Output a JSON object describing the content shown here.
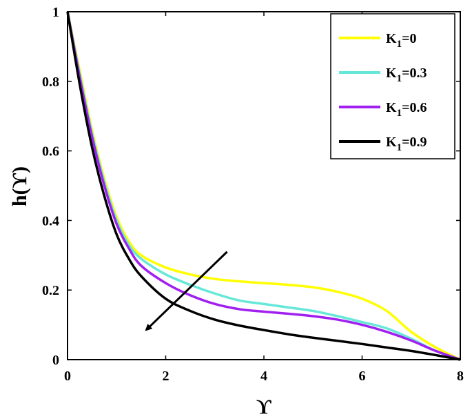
{
  "chart_data": {
    "type": "line",
    "xlabel": "ϒ",
    "ylabel": "h(ϒ)",
    "xlim": [
      0,
      8
    ],
    "ylim": [
      0,
      1
    ],
    "x_ticks": [
      "0",
      "2",
      "4",
      "6",
      "8"
    ],
    "y_ticks": [
      "0",
      "0.2",
      "0.4",
      "0.6",
      "0.8",
      "1"
    ],
    "grid": false,
    "legend_position": "top-right",
    "series": [
      {
        "name": "K1=0",
        "name_main": "K",
        "name_sub": "1",
        "name_rest": "=0",
        "color": "#ffff00",
        "x": [
          0,
          0.25,
          0.5,
          0.75,
          1.0,
          1.25,
          1.5,
          2.0,
          2.5,
          3.0,
          3.5,
          4.0,
          4.5,
          5.0,
          5.5,
          6.0,
          6.5,
          7.0,
          7.5,
          8.0
        ],
        "y": [
          1.0,
          0.83,
          0.66,
          0.52,
          0.41,
          0.34,
          0.3,
          0.265,
          0.245,
          0.232,
          0.225,
          0.22,
          0.215,
          0.208,
          0.195,
          0.175,
          0.14,
          0.08,
          0.035,
          0.0
        ]
      },
      {
        "name": "K1=0.3",
        "name_main": "K",
        "name_sub": "1",
        "name_rest": "=0.3",
        "color": "#66e8d8",
        "x": [
          0,
          0.25,
          0.5,
          0.75,
          1.0,
          1.25,
          1.5,
          2.0,
          2.5,
          3.0,
          3.5,
          4.0,
          4.5,
          5.0,
          5.5,
          6.0,
          6.5,
          7.0,
          7.5,
          8.0
        ],
        "y": [
          1.0,
          0.82,
          0.65,
          0.51,
          0.4,
          0.33,
          0.29,
          0.245,
          0.215,
          0.19,
          0.17,
          0.16,
          0.15,
          0.14,
          0.125,
          0.108,
          0.09,
          0.06,
          0.025,
          0.0
        ]
      },
      {
        "name": "K1=0.6",
        "name_main": "K",
        "name_sub": "1",
        "name_rest": "=0.6",
        "color": "#a020f0",
        "x": [
          0,
          0.25,
          0.5,
          0.75,
          1.0,
          1.25,
          1.5,
          2.0,
          2.5,
          3.0,
          3.5,
          4.0,
          4.5,
          5.0,
          5.5,
          6.0,
          6.5,
          7.0,
          7.5,
          8.0
        ],
        "y": [
          1.0,
          0.81,
          0.64,
          0.5,
          0.39,
          0.32,
          0.27,
          0.22,
          0.185,
          0.16,
          0.145,
          0.138,
          0.132,
          0.125,
          0.115,
          0.1,
          0.08,
          0.055,
          0.025,
          0.0
        ]
      },
      {
        "name": "K1=0.9",
        "name_main": "K",
        "name_sub": "1",
        "name_rest": "=0.9",
        "color": "#000000",
        "x": [
          0,
          0.25,
          0.5,
          0.75,
          1.0,
          1.25,
          1.5,
          2.0,
          2.5,
          3.0,
          3.5,
          4.0,
          4.5,
          5.0,
          5.5,
          6.0,
          6.5,
          7.0,
          7.5,
          8.0
        ],
        "y": [
          1.0,
          0.79,
          0.61,
          0.47,
          0.36,
          0.29,
          0.24,
          0.175,
          0.14,
          0.115,
          0.098,
          0.085,
          0.073,
          0.063,
          0.054,
          0.045,
          0.035,
          0.025,
          0.013,
          0.0
        ]
      }
    ],
    "annotations": [
      {
        "type": "arrow",
        "from": [
          3.25,
          0.31
        ],
        "to": [
          1.6,
          0.085
        ],
        "color": "#000000"
      }
    ]
  }
}
